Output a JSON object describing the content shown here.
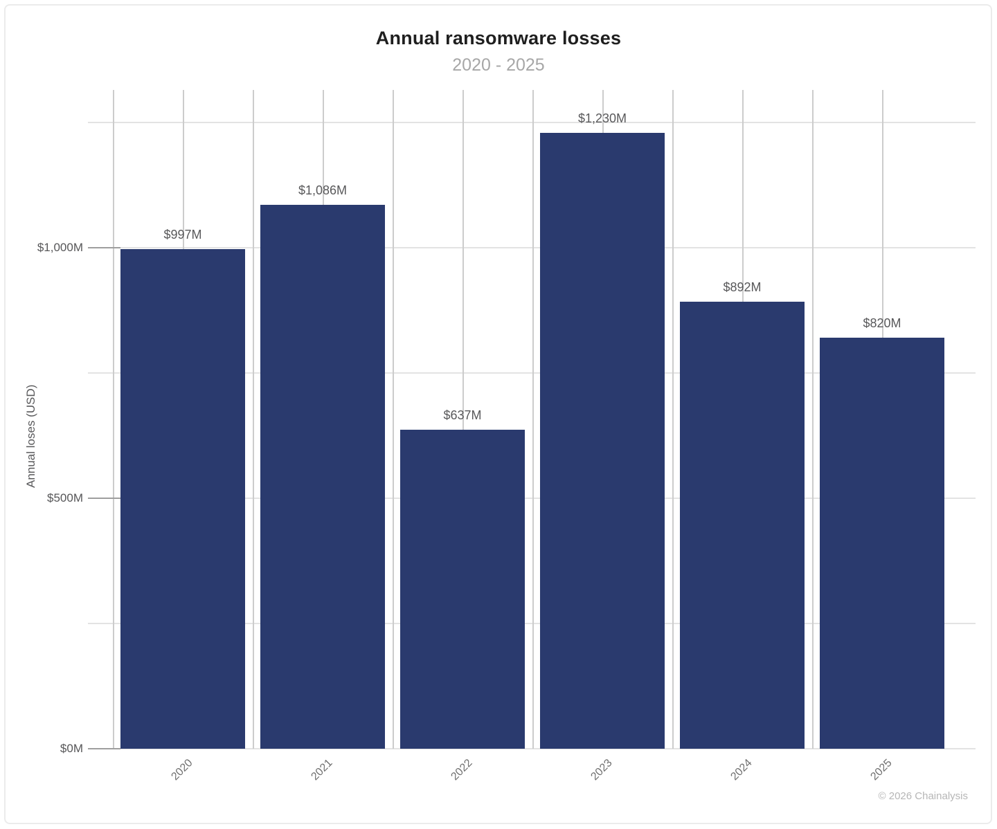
{
  "chart_data": {
    "type": "bar",
    "title": "Annual ransomware losses",
    "subtitle": "2020 - 2025",
    "xlabel": "",
    "ylabel": "Annual loses (USD)",
    "categories": [
      "2020",
      "2021",
      "2022",
      "2023",
      "2024",
      "2025"
    ],
    "values": [
      997,
      1086,
      637,
      1230,
      892,
      820
    ],
    "value_labels": [
      "$997M",
      "$1,086M",
      "$637M",
      "$1,230M",
      "$892M",
      "$820M"
    ],
    "yticks": [
      {
        "value": 0,
        "label": "$0M"
      },
      {
        "value": 500,
        "label": "$500M"
      },
      {
        "value": 1000,
        "label": "$1,000M"
      }
    ],
    "gridline_values": [
      0,
      250,
      500,
      750,
      1000,
      1250
    ],
    "ylim": [
      0,
      1315
    ],
    "units": "USD millions",
    "bar_color": "#2a3a6e",
    "grid": "on",
    "legend_position": "none",
    "source_note": "© 2026 Chainalysis"
  }
}
